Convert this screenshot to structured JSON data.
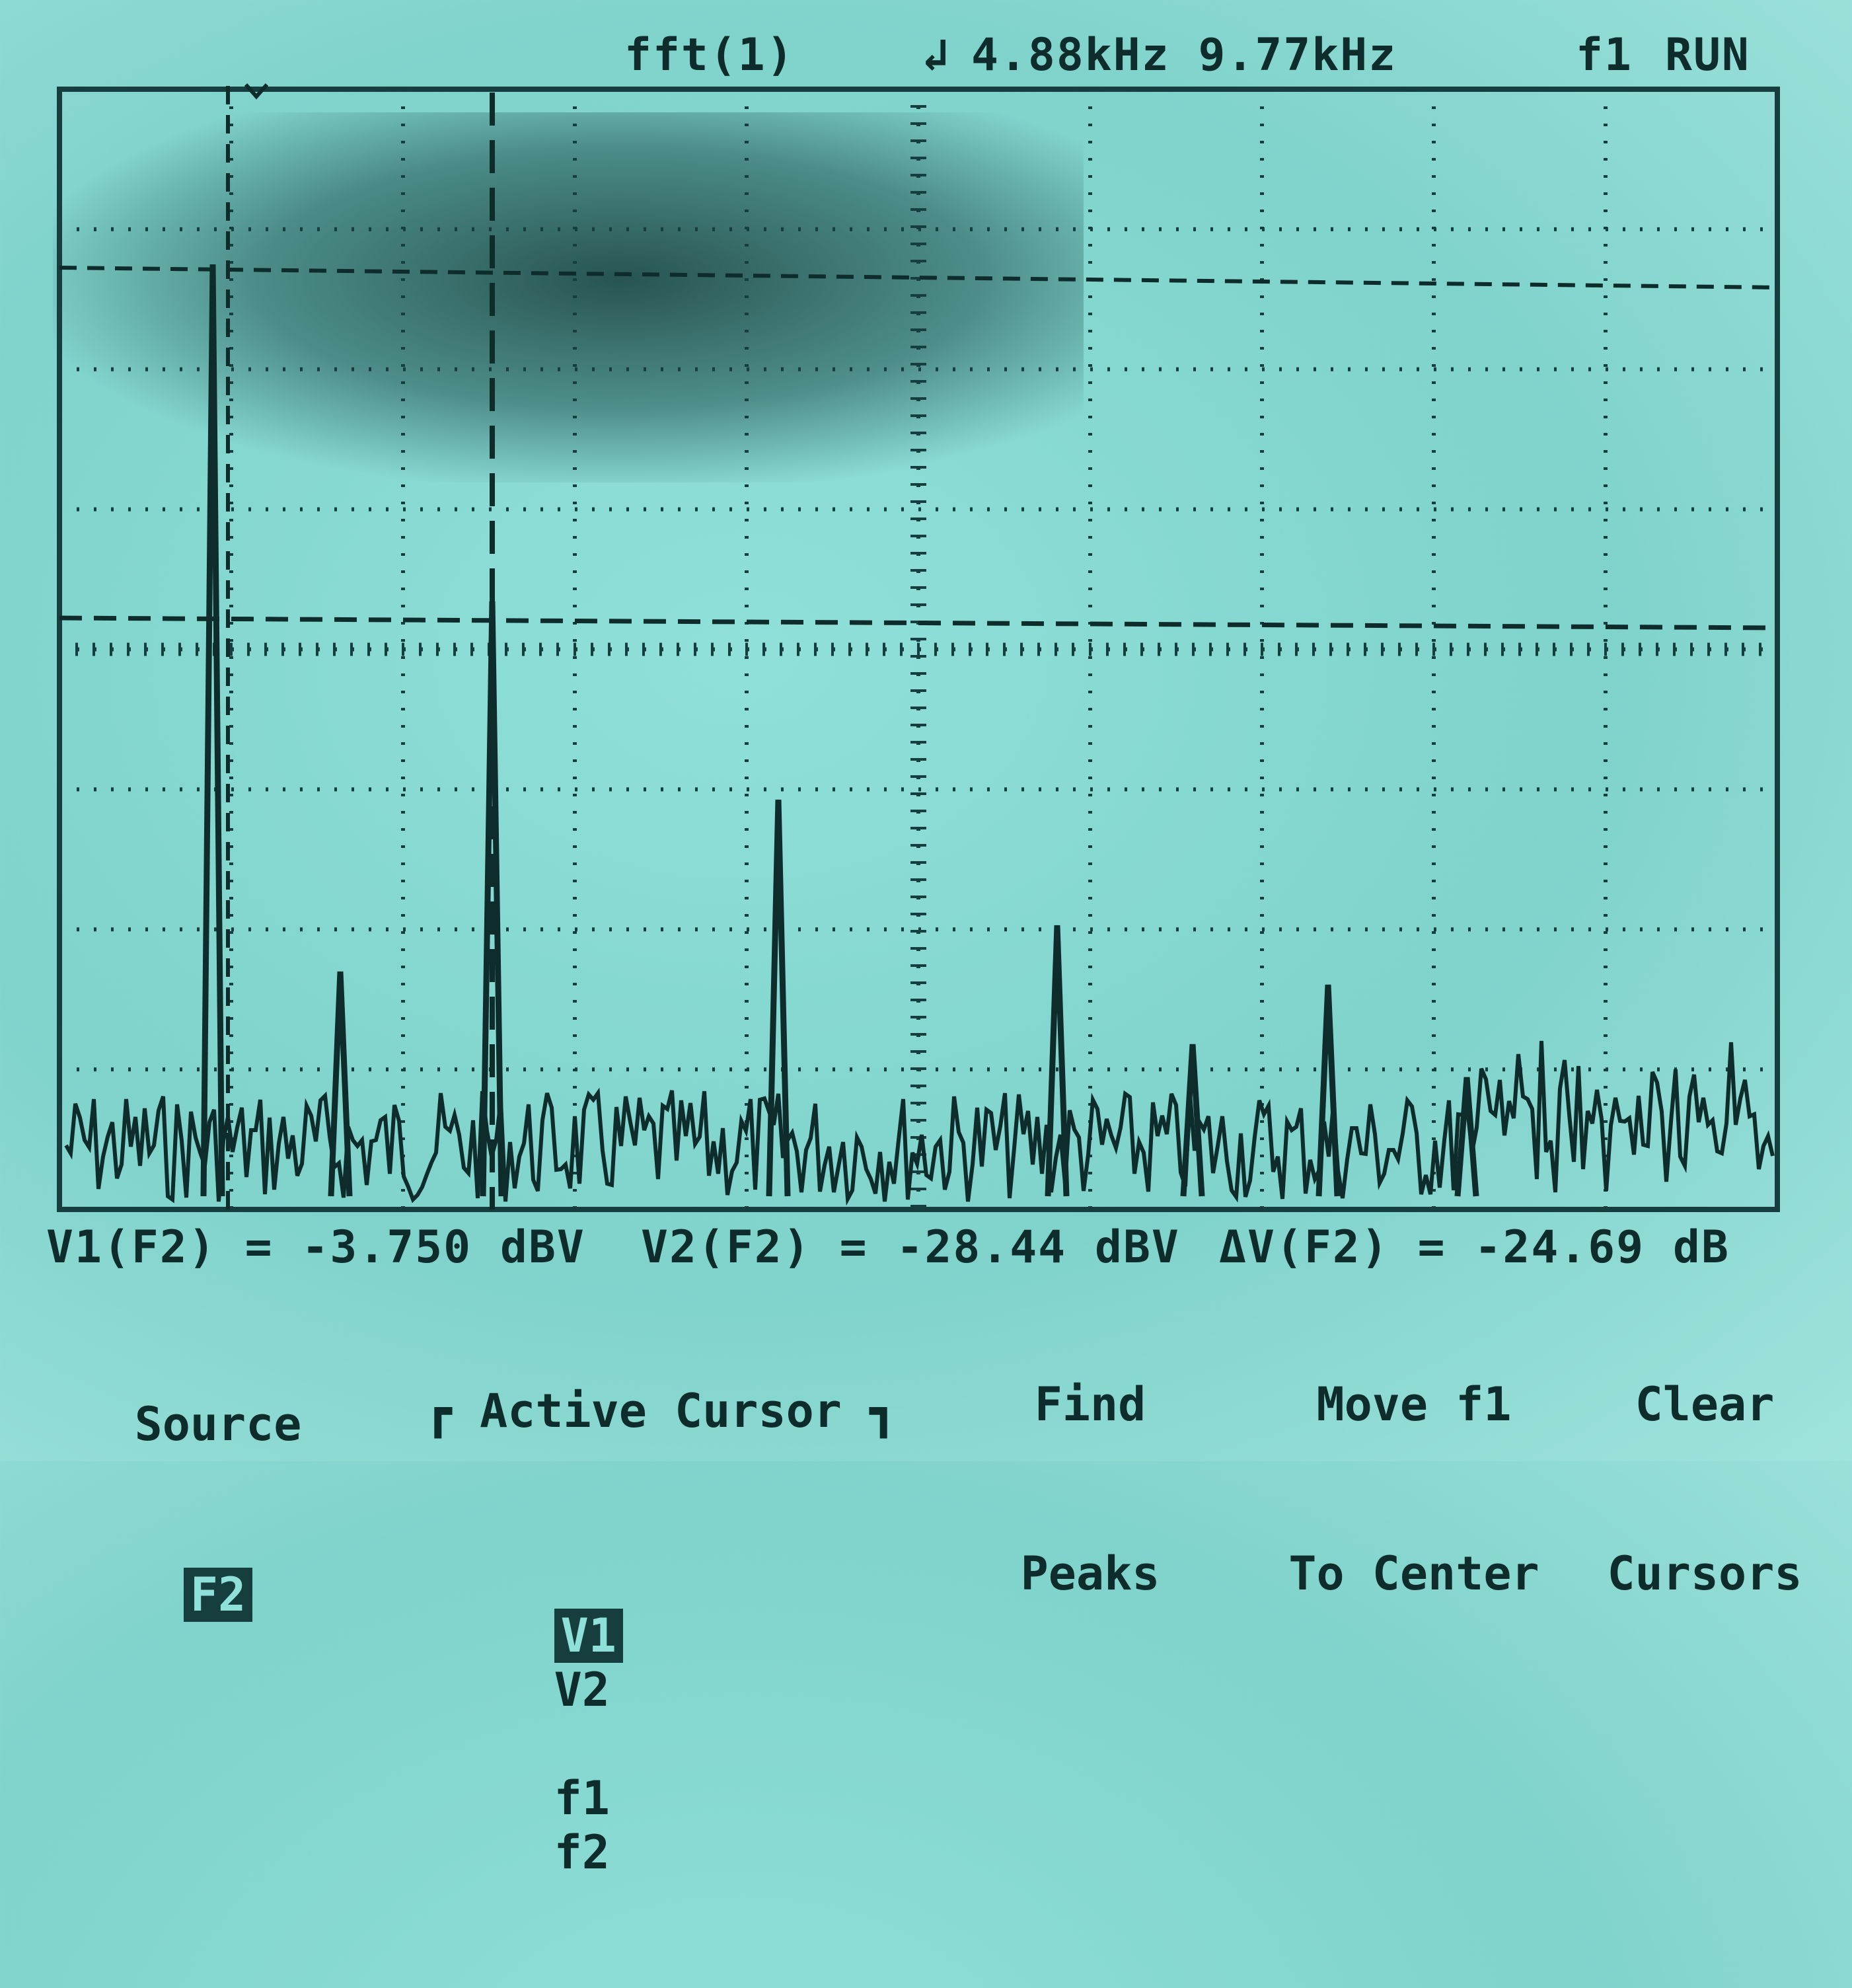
{
  "header": {
    "function_label": "fft(1)",
    "span_info": "4.88kHz 9.77kHz",
    "trigger_label": "f1",
    "run_state": "RUN"
  },
  "readouts": {
    "v1": "V1(F2) = -3.750 dBV",
    "v2": "V2(F2) = -28.44 dBV",
    "delta": "ΔV(F2) = -24.69 dB"
  },
  "softkeys": {
    "source_label": "Source",
    "source_value": "F2",
    "active_cursor_label": "Active Cursor",
    "cursor_v1": "V1",
    "cursor_v2": "V2",
    "cursor_f1": "f1",
    "cursor_f2": "f2",
    "find_peaks_line1": "Find",
    "find_peaks_line2": "Peaks",
    "move_center_line1": "Move f1",
    "move_center_line2": "To Center",
    "clear_line1": "Clear",
    "clear_line2": "Cursors"
  },
  "colors": {
    "screen": "#8fe0d8",
    "trace": "#0f2c2c"
  }
}
